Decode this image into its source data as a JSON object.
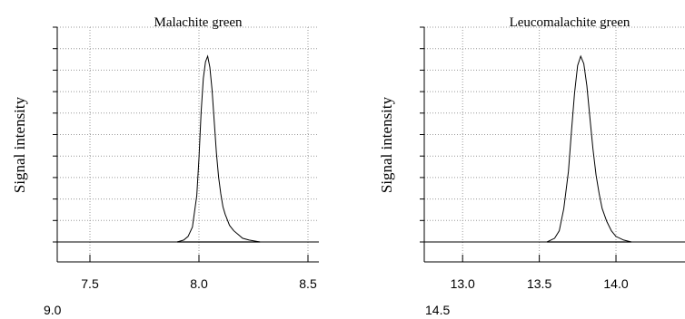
{
  "chart_data": [
    {
      "type": "line",
      "title": "Malachite green",
      "xlabel": "",
      "ylabel": "Signal intensity",
      "xlim": [
        7.35,
        8.55
      ],
      "x_ticks": [
        "7.5",
        "8.0",
        "8.5"
      ],
      "x_tick_values": [
        7.5,
        8.0,
        8.5
      ],
      "overflow_tick": "9.0",
      "overflow_tick_value": 9.0,
      "ylim": [
        0,
        100
      ],
      "grid": true,
      "series": [
        {
          "x": [
            7.35,
            7.9,
            7.93,
            7.95,
            7.97,
            7.99,
            8.0,
            8.01,
            8.02,
            8.03,
            8.04,
            8.05,
            8.06,
            8.07,
            8.08,
            8.09,
            8.1,
            8.11,
            8.12,
            8.13,
            8.14,
            8.16,
            8.18,
            8.2,
            8.23,
            8.28,
            8.55
          ],
          "y": [
            0,
            0,
            1,
            3,
            8,
            25,
            45,
            70,
            88,
            97,
            100,
            94,
            82,
            65,
            48,
            35,
            26,
            19,
            15,
            12,
            9,
            6,
            4,
            2,
            1,
            0,
            0
          ]
        }
      ]
    },
    {
      "type": "line",
      "title": "Leucomalachite green",
      "xlabel": "",
      "ylabel": "Signal intensity",
      "xlim": [
        12.75,
        14.45
      ],
      "x_ticks": [
        "13.0",
        "13.5",
        "14.0"
      ],
      "x_tick_values": [
        13.0,
        13.5,
        14.0
      ],
      "overflow_tick": "14.5",
      "overflow_tick_value": 14.5,
      "ylim": [
        0,
        100
      ],
      "grid": true,
      "series": [
        {
          "x": [
            12.75,
            13.55,
            13.6,
            13.63,
            13.66,
            13.69,
            13.71,
            13.73,
            13.75,
            13.77,
            13.79,
            13.81,
            13.83,
            13.85,
            13.87,
            13.89,
            13.91,
            13.94,
            13.97,
            14.0,
            14.05,
            14.1,
            14.45
          ],
          "y": [
            0,
            0,
            2,
            6,
            18,
            38,
            60,
            80,
            95,
            100,
            96,
            84,
            67,
            50,
            36,
            26,
            18,
            11,
            6,
            3,
            1,
            0,
            0
          ]
        }
      ]
    }
  ]
}
